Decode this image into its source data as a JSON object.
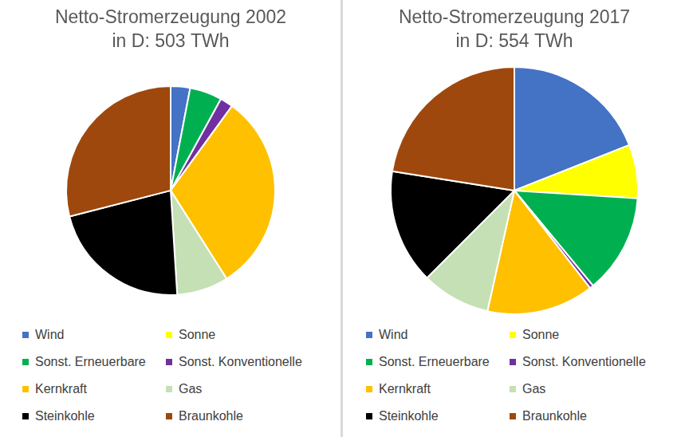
{
  "chart_data": [
    {
      "type": "pie",
      "title": [
        "Netto-Stromerzeugung 2002",
        "in D: 503 TWh"
      ],
      "categories": [
        "Wind",
        "Sonne",
        "Sonst. Erneuerbare",
        "Sonst. Konventionelle",
        "Kernkraft",
        "Gas",
        "Steinkohle",
        "Braunkohle"
      ],
      "values": [
        3,
        0,
        5,
        2,
        31,
        8,
        22,
        29
      ],
      "colors": [
        "#4472c4",
        "#ffff00",
        "#00b050",
        "#7030a0",
        "#ffc000",
        "#c5e0b4",
        "#000000",
        "#9e480e"
      ],
      "legend": "bottom"
    },
    {
      "type": "pie",
      "title": [
        "Netto-Stromerzeugung 2017",
        "in D: 554 TWh"
      ],
      "categories": [
        "Wind",
        "Sonne",
        "Sonst. Erneuerbare",
        "Sonst. Konventionelle",
        "Kernkraft",
        "Gas",
        "Steinkohle",
        "Braunkohle"
      ],
      "values": [
        19,
        7,
        13,
        0.5,
        14,
        9,
        15,
        22.5
      ],
      "colors": [
        "#4472c4",
        "#ffff00",
        "#00b050",
        "#7030a0",
        "#ffc000",
        "#c5e0b4",
        "#000000",
        "#9e480e"
      ],
      "legend": "bottom"
    }
  ]
}
